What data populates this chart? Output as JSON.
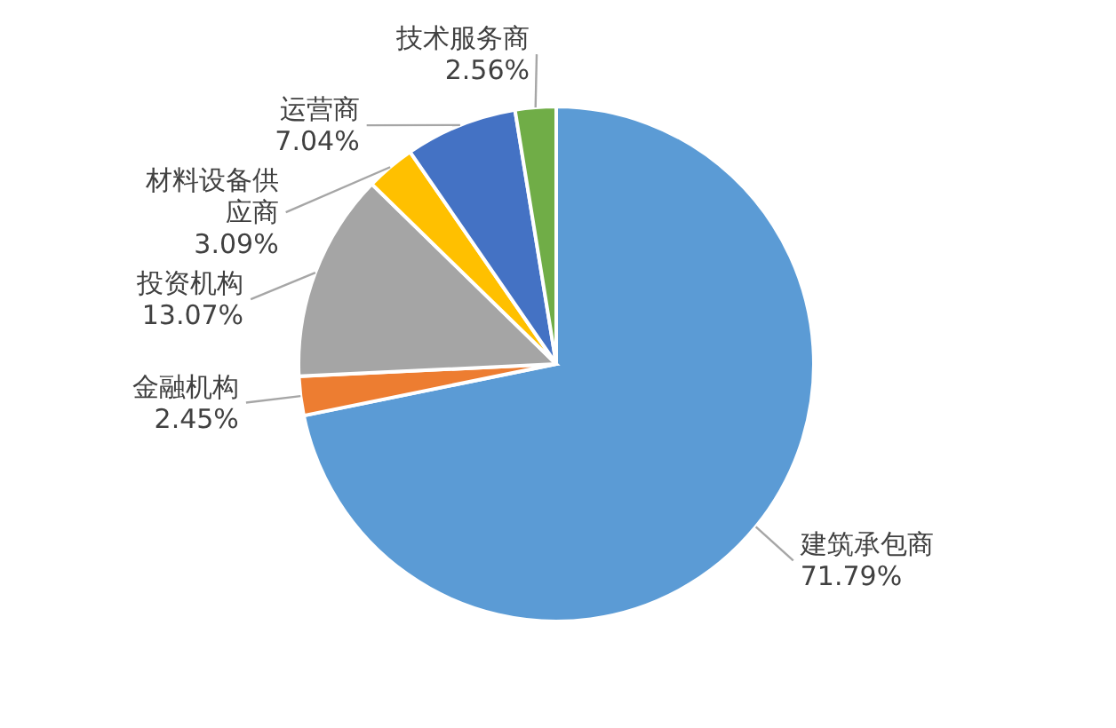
{
  "chart_data": {
    "type": "pie",
    "categories": [
      "建筑承包商",
      "金融机构",
      "投资机构",
      "材料设备供应商",
      "运营商",
      "技术服务商"
    ],
    "values": [
      71.79,
      2.45,
      13.07,
      3.09,
      7.04,
      2.56
    ],
    "colors": [
      "#5b9bd5",
      "#ed7d31",
      "#a5a5a5",
      "#ffc000",
      "#4472c4",
      "#70ad47"
    ],
    "value_labels": [
      "71.79%",
      "2.45%",
      "13.07%",
      "3.09%",
      "7.04%",
      "2.56%"
    ]
  }
}
